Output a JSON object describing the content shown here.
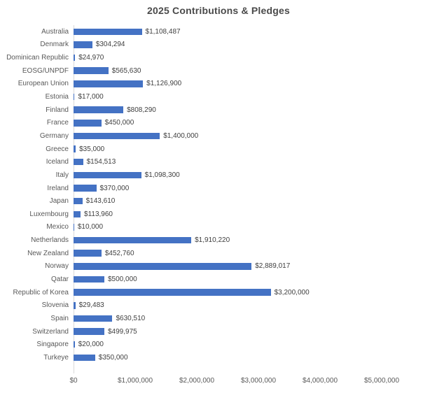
{
  "chart_data": {
    "type": "bar",
    "orientation": "horizontal",
    "title": "2025 Contributions & Pledges",
    "xlabel": "",
    "ylabel": "",
    "grid": false,
    "legend": "none",
    "xlim": [
      0,
      5000000
    ],
    "categories": [
      "Australia",
      "Denmark",
      "Dominican Republic",
      "EOSG/UNPDF",
      "European Union",
      "Estonia",
      "Finland",
      "France",
      "Germany",
      "Greece",
      "Iceland",
      "Italy",
      "Ireland",
      "Japan",
      "Luxembourg",
      "Mexico",
      "Netherlands",
      "New Zealand",
      "Norway",
      "Qatar",
      "Republic of Korea",
      "Slovenia",
      "Spain",
      "Switzerland",
      "Singapore",
      "Turkeye"
    ],
    "values": [
      1108487,
      304294,
      24970,
      565630,
      1126900,
      17000,
      808290,
      450000,
      1400000,
      35000,
      154513,
      1098300,
      370000,
      143610,
      113960,
      10000,
      1910220,
      452760,
      2889017,
      500000,
      3200000,
      29483,
      630510,
      499975,
      20000,
      350000
    ],
    "value_labels": [
      "$1,108,487",
      "$304,294",
      "$24,970",
      "$565,630",
      "$1,126,900",
      "$17,000",
      "$808,290",
      "$450,000",
      "$1,400,000",
      "$35,000",
      "$154,513",
      "$1,098,300",
      "$370,000",
      "$143,610",
      "$113,960",
      "$10,000",
      "$1,910,220",
      "$452,760",
      "$2,889,017",
      "$500,000",
      "$3,200,000",
      "$29,483",
      "$630,510",
      "$499,975",
      "$20,000",
      "$350,000"
    ],
    "x_tick_labels": [
      "$0",
      "$1,000,000",
      "$2,000,000",
      "$3,000,000",
      "$4,000,000",
      "$5,000,000"
    ],
    "x_tick_values": [
      0,
      1000000,
      2000000,
      3000000,
      4000000,
      5000000
    ],
    "colors": {
      "bar_fill": "#4472C4",
      "title_text": "#4a4a4a",
      "category_text": "#595959",
      "value_text": "#404040",
      "axis_line": "#d9d9d9",
      "background": "#ffffff"
    }
  }
}
